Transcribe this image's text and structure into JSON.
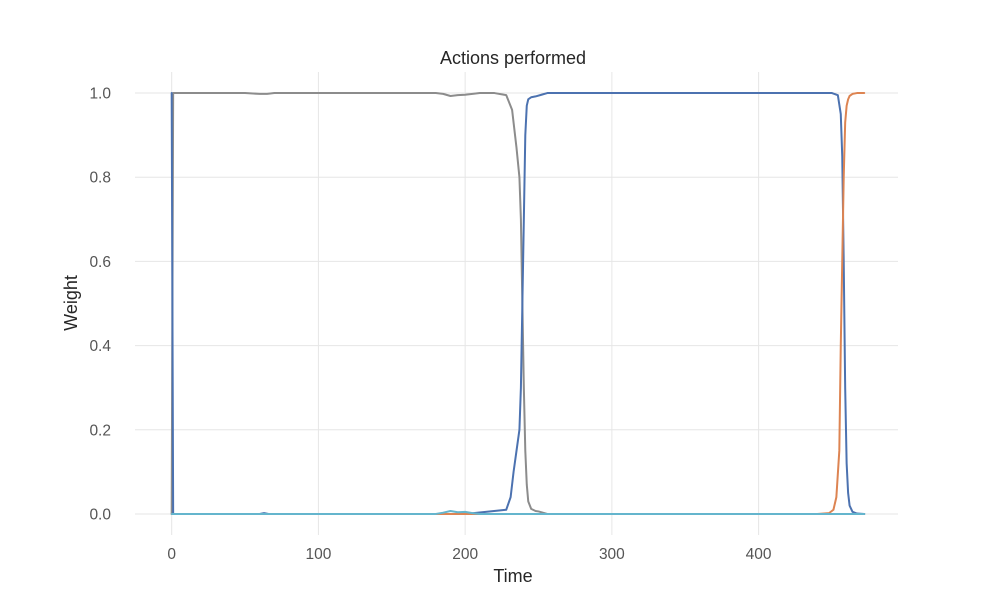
{
  "chart_data": {
    "type": "line",
    "title": "Actions performed",
    "xlabel": "Time",
    "ylabel": "Weight",
    "xlim": [
      -25,
      495
    ],
    "ylim": [
      -0.05,
      1.05
    ],
    "xticks": [
      0,
      100,
      200,
      300,
      400
    ],
    "xtick_labels": [
      "0",
      "100",
      "200",
      "300",
      "400"
    ],
    "yticks": [
      0.0,
      0.2,
      0.4,
      0.6,
      0.8,
      1.0
    ],
    "ytick_labels": [
      "0.0",
      "0.2",
      "0.4",
      "0.6",
      "0.8",
      "1.0"
    ],
    "grid": true,
    "legend": "none",
    "series": [
      {
        "color": "#8c8c8c",
        "x": [
          0,
          1,
          2,
          20,
          50,
          60,
          65,
          70,
          100,
          150,
          180,
          185,
          190,
          195,
          200,
          205,
          210,
          220,
          228,
          232,
          235,
          237,
          238,
          239,
          240,
          241,
          242,
          243,
          245,
          248,
          250,
          253,
          256,
          260,
          300,
          400,
          472
        ],
        "y": [
          0.0,
          1.0,
          1.0,
          1.0,
          1.0,
          0.998,
          0.998,
          1.0,
          1.0,
          1.0,
          1.0,
          0.998,
          0.993,
          0.995,
          0.996,
          0.998,
          1.0,
          1.0,
          0.995,
          0.96,
          0.87,
          0.8,
          0.7,
          0.5,
          0.3,
          0.15,
          0.07,
          0.03,
          0.012,
          0.007,
          0.006,
          0.003,
          0.0,
          0.0,
          0.0,
          0.0,
          0.0
        ]
      },
      {
        "color": "#4c72b0",
        "x": [
          0,
          1,
          2,
          60,
          63,
          66,
          100,
          200,
          228,
          231,
          233,
          235,
          237,
          238,
          239,
          240,
          241,
          242,
          243,
          245,
          248,
          252,
          256,
          260,
          300,
          400,
          450,
          454,
          456,
          457,
          458,
          459,
          460,
          461,
          462,
          464,
          467,
          472
        ],
        "y": [
          1.0,
          0.0,
          0.0,
          0.0,
          0.002,
          0.0,
          0.0,
          0.0,
          0.01,
          0.04,
          0.1,
          0.15,
          0.2,
          0.3,
          0.5,
          0.7,
          0.9,
          0.97,
          0.985,
          0.99,
          0.992,
          0.996,
          1.0,
          1.0,
          1.0,
          1.0,
          1.0,
          0.995,
          0.95,
          0.85,
          0.6,
          0.3,
          0.12,
          0.05,
          0.02,
          0.005,
          0.001,
          0.0
        ]
      },
      {
        "color": "#dd8452",
        "x": [
          0,
          440,
          448,
          451,
          453,
          455,
          456,
          457,
          458,
          459,
          460,
          461,
          462,
          464,
          467,
          472
        ],
        "y": [
          0.0,
          0.0,
          0.002,
          0.01,
          0.04,
          0.15,
          0.4,
          0.6,
          0.8,
          0.93,
          0.97,
          0.985,
          0.993,
          0.998,
          1.0,
          1.0
        ]
      },
      {
        "color": "#64b5cd",
        "x": [
          0,
          180,
          185,
          190,
          195,
          200,
          205,
          210,
          472
        ],
        "y": [
          0.0,
          0.0,
          0.003,
          0.007,
          0.004,
          0.005,
          0.002,
          0.0,
          0.0
        ]
      }
    ]
  }
}
